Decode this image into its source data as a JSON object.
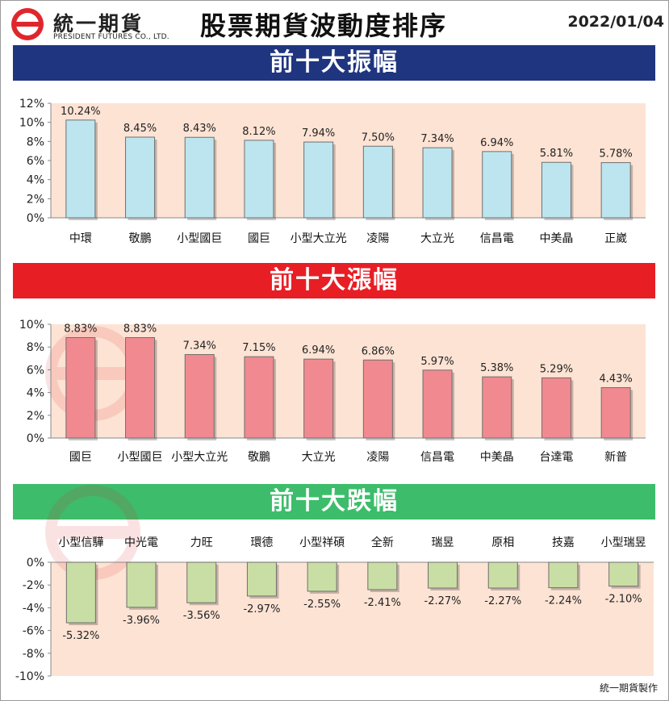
{
  "header": {
    "company_name": "統一期貨",
    "company_sub": "PRESIDENT FUTURES CO., LTD.",
    "title": "股票期貨波動度排序",
    "date": "2022/01/04"
  },
  "footer": {
    "credit": "統一期貨製作"
  },
  "colors": {
    "banner_amplitude": "#1f3580",
    "banner_gain": "#e81e25",
    "banner_loss": "#3dbd6b",
    "plot_bg": "#fde3d4",
    "bar_amplitude": "#bde5f0",
    "bar_gain": "#f08a90",
    "bar_loss": "#c9dea4"
  },
  "chart_data": [
    {
      "type": "bar",
      "title": "前十大振幅",
      "categories": [
        "中環",
        "敬鵬",
        "小型國巨",
        "國巨",
        "小型大立光",
        "凌陽",
        "大立光",
        "信昌電",
        "中美晶",
        "正崴"
      ],
      "values": [
        10.24,
        8.45,
        8.43,
        8.12,
        7.94,
        7.5,
        7.34,
        6.94,
        5.81,
        5.78
      ],
      "value_labels": [
        "10.24%",
        "8.45%",
        "8.43%",
        "8.12%",
        "7.94%",
        "7.50%",
        "7.34%",
        "6.94%",
        "5.81%",
        "5.78%"
      ],
      "ylim": [
        0,
        12
      ],
      "yticks": [
        0,
        2,
        4,
        6,
        8,
        10,
        12
      ],
      "ytick_labels": [
        "0%",
        "2%",
        "4%",
        "6%",
        "8%",
        "10%",
        "12%"
      ],
      "grid": false,
      "xlabel": "",
      "ylabel": ""
    },
    {
      "type": "bar",
      "title": "前十大漲幅",
      "categories": [
        "國巨",
        "小型國巨",
        "小型大立光",
        "敬鵬",
        "大立光",
        "凌陽",
        "信昌電",
        "中美晶",
        "台達電",
        "新普"
      ],
      "values": [
        8.83,
        8.83,
        7.34,
        7.15,
        6.94,
        6.86,
        5.97,
        5.38,
        5.29,
        4.43
      ],
      "value_labels": [
        "8.83%",
        "8.83%",
        "7.34%",
        "7.15%",
        "6.94%",
        "6.86%",
        "5.97%",
        "5.38%",
        "5.29%",
        "4.43%"
      ],
      "ylim": [
        0,
        10
      ],
      "yticks": [
        0,
        2,
        4,
        6,
        8,
        10
      ],
      "ytick_labels": [
        "0%",
        "2%",
        "4%",
        "6%",
        "8%",
        "10%"
      ],
      "grid": false,
      "xlabel": "",
      "ylabel": ""
    },
    {
      "type": "bar",
      "title": "前十大跌幅",
      "categories": [
        "小型信驊",
        "中光電",
        "力旺",
        "環德",
        "小型祥碩",
        "全新",
        "瑞昱",
        "原相",
        "技嘉",
        "小型瑞昱"
      ],
      "values": [
        -5.32,
        -3.96,
        -3.56,
        -2.97,
        -2.55,
        -2.41,
        -2.27,
        -2.27,
        -2.24,
        -2.1
      ],
      "value_labels": [
        "-5.32%",
        "-3.96%",
        "-3.56%",
        "-2.97%",
        "-2.55%",
        "-2.41%",
        "-2.27%",
        "-2.27%",
        "-2.24%",
        "-2.10%"
      ],
      "ylim": [
        -10,
        0
      ],
      "yticks": [
        0,
        -2,
        -4,
        -6,
        -8,
        -10
      ],
      "ytick_labels": [
        "0%",
        "-2%",
        "-4%",
        "-6%",
        "-8%",
        "-10%"
      ],
      "grid": false,
      "xlabel": "",
      "ylabel": ""
    }
  ]
}
